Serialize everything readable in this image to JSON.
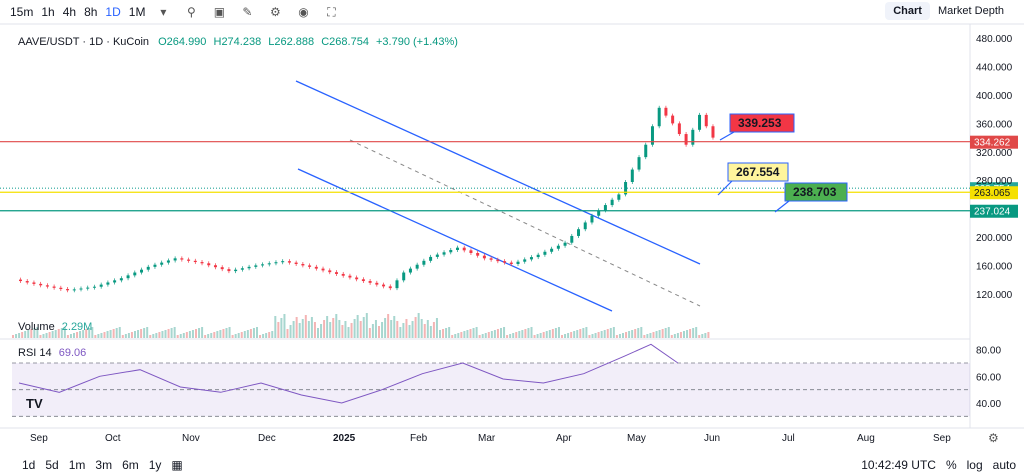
{
  "toolbar": {
    "timeframes": [
      "15m",
      "1h",
      "4h",
      "8h",
      "1D",
      "1M"
    ],
    "active": "1D",
    "tabs": [
      "Chart",
      "Market Depth"
    ],
    "active_tab": "Chart"
  },
  "header": {
    "symbol": "AAVE/USDT · 1D · KuCoin",
    "o_label": "O",
    "o": "264.990",
    "h_label": "H",
    "h": "274.238",
    "l_label": "L",
    "l": "262.888",
    "c_label": "C",
    "c": "268.754",
    "chg": "+3.790 (+1.43%)",
    "volume_label": "Volume",
    "volume": "2.29M",
    "rsi_label": "RSI 14",
    "rsi": "69.06"
  },
  "bottom": {
    "ranges": [
      "1d",
      "5d",
      "1m",
      "3m",
      "6m",
      "1y"
    ],
    "time": "10:42:49 UTC",
    "pct": "%",
    "log": "log",
    "auto": "auto"
  },
  "chart_data": {
    "type": "line",
    "title": "AAVE/USDT · 1D · KuCoin",
    "x_ticks": [
      "Sep",
      "Oct",
      "Nov",
      "Dec",
      "2025",
      "Feb",
      "Mar",
      "Apr",
      "May",
      "Jun",
      "Jul",
      "Aug",
      "Sep"
    ],
    "y_ticks": [
      "480.000",
      "440.000",
      "400.000",
      "360.000",
      "320.000",
      "280.000",
      "200.000",
      "160.000",
      "120.000"
    ],
    "ylim": [
      93,
      500
    ],
    "price_path": [
      [
        0,
        140
      ],
      [
        4,
        132
      ],
      [
        8,
        125
      ],
      [
        12,
        130
      ],
      [
        16,
        142
      ],
      [
        20,
        158
      ],
      [
        24,
        170
      ],
      [
        28,
        163
      ],
      [
        32,
        152
      ],
      [
        36,
        160
      ],
      [
        40,
        166
      ],
      [
        44,
        158
      ],
      [
        48,
        148
      ],
      [
        52,
        138
      ],
      [
        56,
        128
      ],
      [
        58,
        150
      ],
      [
        62,
        172
      ],
      [
        66,
        185
      ],
      [
        70,
        170
      ],
      [
        74,
        162
      ],
      [
        78,
        175
      ],
      [
        82,
        192
      ],
      [
        86,
        230
      ],
      [
        90,
        260
      ],
      [
        94,
        330
      ],
      [
        96,
        382
      ],
      [
        98,
        360
      ],
      [
        100,
        330
      ],
      [
        102,
        372
      ],
      [
        104,
        340
      ],
      [
        106,
        320
      ],
      [
        108,
        345
      ],
      [
        110,
        320
      ],
      [
        112,
        300
      ],
      [
        114,
        322
      ],
      [
        116,
        360
      ],
      [
        118,
        345
      ],
      [
        120,
        330
      ],
      [
        122,
        305
      ],
      [
        124,
        270
      ],
      [
        126,
        250
      ],
      [
        128,
        260
      ],
      [
        130,
        248
      ],
      [
        132,
        262
      ],
      [
        134,
        250
      ],
      [
        136,
        235
      ],
      [
        138,
        220
      ],
      [
        140,
        210
      ],
      [
        142,
        190
      ],
      [
        144,
        170
      ],
      [
        146,
        180
      ],
      [
        148,
        192
      ],
      [
        150,
        175
      ],
      [
        152,
        160
      ],
      [
        154,
        145
      ],
      [
        156,
        130
      ],
      [
        158,
        125
      ],
      [
        160,
        138
      ],
      [
        162,
        150
      ],
      [
        164,
        160
      ],
      [
        166,
        168
      ],
      [
        168,
        165
      ],
      [
        170,
        175
      ],
      [
        172,
        205
      ],
      [
        174,
        220
      ],
      [
        176,
        232
      ],
      [
        178,
        242
      ],
      [
        180,
        255
      ],
      [
        182,
        265
      ],
      [
        184,
        272
      ],
      [
        186,
        268.754
      ]
    ],
    "series": [
      {
        "name": "",
        "values": [
          339.253
        ]
      },
      {
        "name": "",
        "values": [
          267.554
        ]
      },
      {
        "name": "",
        "values": [
          238.703
        ]
      }
    ],
    "horizontal_lines": [
      {
        "label": "334.262",
        "value": 334.262,
        "color": "#e04848"
      },
      {
        "label": "268.754",
        "value": 268.754,
        "color": "#26a69a"
      },
      {
        "label": "263.065",
        "value": 263.065,
        "color": "#f5e000"
      },
      {
        "label": "237.024",
        "value": 237.024,
        "color": "#089981"
      }
    ],
    "callouts": [
      {
        "label": "339.253",
        "color": "#f23645"
      },
      {
        "label": "267.554",
        "color": "#fff59d"
      },
      {
        "label": "238.703",
        "color": "#4caf50"
      }
    ],
    "rsi_ticks": [
      "80.00",
      "60.00",
      "40.00"
    ],
    "rsi_ylim": [
      25,
      85
    ],
    "rsi_path": [
      [
        0,
        55
      ],
      [
        6,
        48
      ],
      [
        12,
        60
      ],
      [
        18,
        65
      ],
      [
        24,
        52
      ],
      [
        30,
        48
      ],
      [
        36,
        55
      ],
      [
        42,
        46
      ],
      [
        48,
        40
      ],
      [
        54,
        50
      ],
      [
        60,
        62
      ],
      [
        66,
        70
      ],
      [
        72,
        58
      ],
      [
        78,
        55
      ],
      [
        84,
        62
      ],
      [
        90,
        75
      ],
      [
        94,
        84
      ],
      [
        98,
        70
      ],
      [
        104,
        60
      ],
      [
        110,
        56
      ],
      [
        116,
        62
      ],
      [
        120,
        48
      ],
      [
        126,
        40
      ],
      [
        132,
        44
      ],
      [
        138,
        36
      ],
      [
        144,
        32
      ],
      [
        150,
        38
      ],
      [
        156,
        33
      ],
      [
        160,
        42
      ],
      [
        166,
        52
      ],
      [
        170,
        60
      ],
      [
        174,
        66
      ],
      [
        178,
        70
      ],
      [
        182,
        69
      ],
      [
        186,
        69.06
      ]
    ],
    "x_max": 260
  }
}
